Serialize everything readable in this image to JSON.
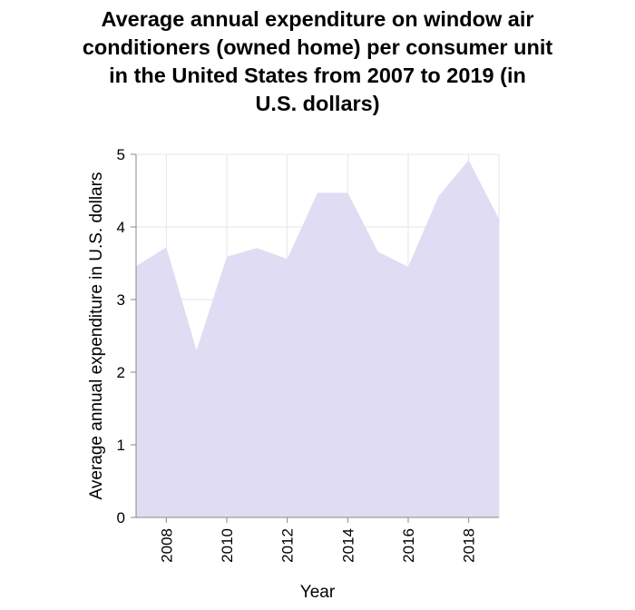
{
  "chart_data": {
    "type": "area",
    "title_lines": [
      "Average annual expenditure on window air",
      "conditioners (owned home) per consumer unit",
      "in the United States from 2007 to 2019 (in",
      "U.S. dollars)"
    ],
    "xlabel": "Year",
    "ylabel": "Average annual expenditure in U.S. dollars",
    "x": [
      2007,
      2008,
      2009,
      2010,
      2011,
      2012,
      2013,
      2014,
      2015,
      2016,
      2017,
      2018,
      2019
    ],
    "values": [
      3.46,
      3.72,
      2.3,
      3.59,
      3.71,
      3.56,
      4.47,
      4.47,
      3.66,
      3.45,
      4.42,
      4.92,
      4.11
    ],
    "xlim": [
      2007,
      2019
    ],
    "ylim": [
      0,
      5
    ],
    "x_ticks": [
      "2008",
      "2010",
      "2012",
      "2014",
      "2016",
      "2018"
    ],
    "y_ticks": [
      "0",
      "1",
      "2",
      "3",
      "4",
      "5"
    ],
    "grid": true,
    "fill_color": "#e0dcf3",
    "grid_color": "#e6e6e6",
    "axis_color": "#888888"
  }
}
